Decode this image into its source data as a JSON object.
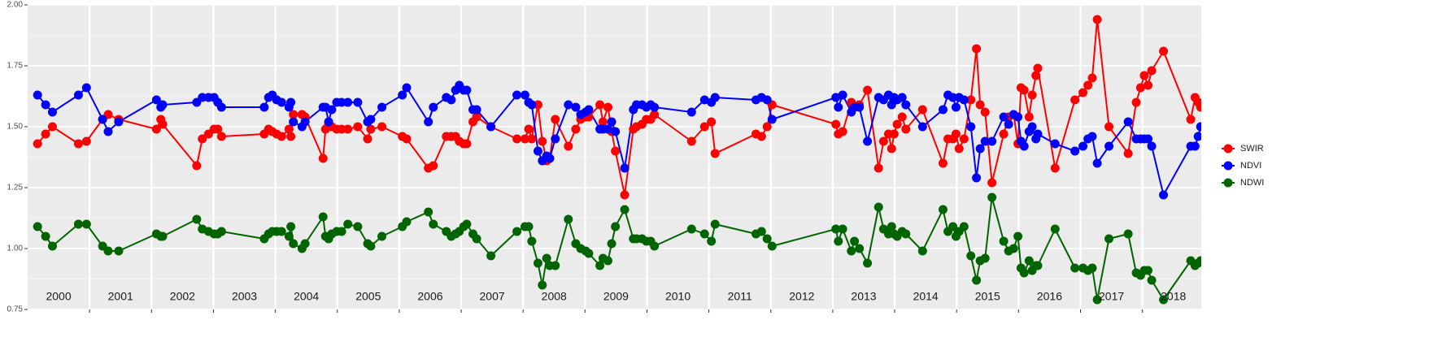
{
  "chart_data": {
    "type": "line",
    "x": [
      2000.16,
      2000.29,
      2000.4,
      2000.82,
      2000.95,
      2001.21,
      2001.3,
      2001.47,
      2002.08,
      2002.15,
      2002.18,
      2002.73,
      2002.82,
      2002.92,
      2003.01,
      2003.07,
      2003.13,
      2003.82,
      2003.89,
      2003.95,
      2004.02,
      2004.1,
      2004.22,
      2004.25,
      2004.29,
      2004.43,
      2004.48,
      2004.77,
      2004.81,
      2004.86,
      2004.91,
      2004.99,
      2005.07,
      2005.17,
      2005.33,
      2005.49,
      2005.54,
      2005.72,
      2006.05,
      2006.12,
      2006.47,
      2006.55,
      2006.76,
      2006.84,
      2006.91,
      2006.97,
      2007.04,
      2007.09,
      2007.19,
      2007.25,
      2007.48,
      2007.9,
      2008.03,
      2008.09,
      2008.14,
      2008.24,
      2008.31,
      2008.38,
      2008.43,
      2008.52,
      2008.73,
      2008.85,
      2008.93,
      2009.01,
      2009.06,
      2009.24,
      2009.29,
      2009.37,
      2009.43,
      2009.49,
      2009.64,
      2009.78,
      2009.83,
      2009.92,
      2009.99,
      2010.06,
      2010.12,
      2010.72,
      2010.93,
      2011.04,
      2011.1,
      2011.76,
      2011.85,
      2011.94,
      2012.02,
      2013.05,
      2013.09,
      2013.16,
      2013.3,
      2013.35,
      2013.43,
      2013.56,
      2013.74,
      2013.82,
      2013.9,
      2013.95,
      2013.99,
      2014.04,
      2014.12,
      2014.18,
      2014.45,
      2014.78,
      2014.86,
      2014.94,
      2014.99,
      2015.04,
      2015.12,
      2015.23,
      2015.32,
      2015.38,
      2015.46,
      2015.57,
      2015.76,
      2015.84,
      2015.92,
      2015.99,
      2016.04,
      2016.09,
      2016.17,
      2016.22,
      2016.28,
      2016.31,
      2016.59,
      2016.91,
      2017.04,
      2017.12,
      2017.19,
      2017.27,
      2017.46,
      2017.77,
      2017.9,
      2017.97,
      2018.03,
      2018.09,
      2018.15,
      2018.34,
      2018.78,
      2018.85,
      2018.9,
      2018.94
    ],
    "series": [
      {
        "name": "SWIR",
        "color": "#ff0000",
        "values": [
          1.43,
          1.47,
          1.5,
          1.43,
          1.44,
          1.53,
          1.55,
          1.53,
          1.49,
          1.53,
          1.51,
          1.34,
          1.45,
          1.47,
          1.49,
          1.49,
          1.46,
          1.47,
          1.49,
          1.48,
          1.47,
          1.46,
          1.49,
          1.46,
          1.55,
          1.55,
          1.54,
          1.37,
          1.49,
          1.51,
          1.5,
          1.49,
          1.49,
          1.49,
          1.5,
          1.45,
          1.49,
          1.5,
          1.46,
          1.45,
          1.33,
          1.34,
          1.46,
          1.46,
          1.46,
          1.44,
          1.43,
          1.43,
          1.52,
          1.54,
          1.5,
          1.45,
          1.45,
          1.49,
          1.45,
          1.59,
          1.44,
          1.36,
          1.37,
          1.53,
          1.42,
          1.49,
          1.53,
          1.54,
          1.54,
          1.59,
          1.52,
          1.58,
          1.48,
          1.4,
          1.22,
          1.49,
          1.5,
          1.51,
          1.53,
          1.53,
          1.55,
          1.44,
          1.5,
          1.52,
          1.39,
          1.47,
          1.46,
          1.5,
          1.59,
          1.51,
          1.47,
          1.48,
          1.6,
          1.58,
          1.59,
          1.65,
          1.33,
          1.44,
          1.47,
          1.41,
          1.47,
          1.51,
          1.54,
          1.49,
          1.57,
          1.35,
          1.45,
          1.45,
          1.47,
          1.41,
          1.45,
          1.61,
          1.82,
          1.59,
          1.56,
          1.27,
          1.47,
          1.54,
          1.55,
          1.43,
          1.66,
          1.65,
          1.54,
          1.63,
          1.71,
          1.74,
          1.33,
          1.61,
          1.64,
          1.67,
          1.7,
          1.94,
          1.5,
          1.39,
          1.6,
          1.66,
          1.71,
          1.67,
          1.73,
          1.81,
          1.53,
          1.62,
          1.6,
          1.58
        ]
      },
      {
        "name": "NDVI",
        "color": "#0000ff",
        "values": [
          1.63,
          1.59,
          1.56,
          1.63,
          1.66,
          1.53,
          1.48,
          1.52,
          1.61,
          1.58,
          1.59,
          1.6,
          1.62,
          1.62,
          1.62,
          1.6,
          1.58,
          1.58,
          1.62,
          1.63,
          1.61,
          1.6,
          1.58,
          1.6,
          1.52,
          1.5,
          1.52,
          1.58,
          1.58,
          1.52,
          1.57,
          1.6,
          1.6,
          1.6,
          1.6,
          1.52,
          1.53,
          1.58,
          1.63,
          1.66,
          1.52,
          1.58,
          1.62,
          1.61,
          1.65,
          1.67,
          1.65,
          1.65,
          1.57,
          1.57,
          1.5,
          1.63,
          1.63,
          1.6,
          1.59,
          1.4,
          1.36,
          1.38,
          1.37,
          1.45,
          1.59,
          1.58,
          1.55,
          1.56,
          1.57,
          1.49,
          1.49,
          1.49,
          1.52,
          1.48,
          1.33,
          1.57,
          1.59,
          1.59,
          1.58,
          1.59,
          1.58,
          1.56,
          1.61,
          1.6,
          1.62,
          1.61,
          1.62,
          1.61,
          1.53,
          1.62,
          1.58,
          1.63,
          1.56,
          1.58,
          1.58,
          1.44,
          1.62,
          1.61,
          1.63,
          1.59,
          1.62,
          1.61,
          1.62,
          1.59,
          1.5,
          1.57,
          1.63,
          1.62,
          1.58,
          1.62,
          1.61,
          1.5,
          1.29,
          1.41,
          1.44,
          1.44,
          1.54,
          1.51,
          1.55,
          1.54,
          1.44,
          1.42,
          1.48,
          1.5,
          1.45,
          1.47,
          1.43,
          1.4,
          1.42,
          1.45,
          1.46,
          1.35,
          1.42,
          1.52,
          1.45,
          1.45,
          1.45,
          1.45,
          1.42,
          1.22,
          1.42,
          1.42,
          1.46,
          1.5
        ]
      },
      {
        "name": "NDWI",
        "color": "#006400",
        "values": [
          1.09,
          1.05,
          1.01,
          1.1,
          1.1,
          1.01,
          0.99,
          0.99,
          1.06,
          1.05,
          1.05,
          1.12,
          1.08,
          1.07,
          1.06,
          1.06,
          1.07,
          1.04,
          1.06,
          1.07,
          1.07,
          1.07,
          1.05,
          1.09,
          1.02,
          1.0,
          1.02,
          1.13,
          1.05,
          1.04,
          1.06,
          1.07,
          1.07,
          1.1,
          1.09,
          1.02,
          1.01,
          1.05,
          1.09,
          1.11,
          1.15,
          1.1,
          1.07,
          1.05,
          1.06,
          1.07,
          1.09,
          1.1,
          1.06,
          1.04,
          0.97,
          1.07,
          1.09,
          1.09,
          1.03,
          0.94,
          0.85,
          0.96,
          0.93,
          0.93,
          1.12,
          1.02,
          1.0,
          0.99,
          0.98,
          0.93,
          0.96,
          0.95,
          1.02,
          1.09,
          1.16,
          1.04,
          1.04,
          1.04,
          1.03,
          1.03,
          1.01,
          1.08,
          1.06,
          1.03,
          1.1,
          1.06,
          1.07,
          1.04,
          1.01,
          1.08,
          1.03,
          1.08,
          0.99,
          1.03,
          1.0,
          0.94,
          1.17,
          1.08,
          1.06,
          1.09,
          1.06,
          1.05,
          1.07,
          1.06,
          0.99,
          1.16,
          1.07,
          1.09,
          1.05,
          1.07,
          1.09,
          0.97,
          0.87,
          0.95,
          0.96,
          1.21,
          1.03,
          0.99,
          1.0,
          1.05,
          0.92,
          0.9,
          0.95,
          0.91,
          0.93,
          0.93,
          1.08,
          0.92,
          0.92,
          0.91,
          0.92,
          0.79,
          1.04,
          1.06,
          0.9,
          0.89,
          0.91,
          0.91,
          0.87,
          0.79,
          0.95,
          0.93,
          0.94,
          0.95
        ]
      }
    ],
    "xlim": [
      2000.0,
      2018.95
    ],
    "xticks": [
      {
        "value": 2000.5,
        "label": "2000"
      },
      {
        "value": 2001.5,
        "label": "2001"
      },
      {
        "value": 2002.5,
        "label": "2002"
      },
      {
        "value": 2003.5,
        "label": "2003"
      },
      {
        "value": 2004.5,
        "label": "2004"
      },
      {
        "value": 2005.5,
        "label": "2005"
      },
      {
        "value": 2006.5,
        "label": "2006"
      },
      {
        "value": 2007.5,
        "label": "2007"
      },
      {
        "value": 2008.5,
        "label": "2008"
      },
      {
        "value": 2009.5,
        "label": "2009"
      },
      {
        "value": 2010.5,
        "label": "2010"
      },
      {
        "value": 2011.5,
        "label": "2011"
      },
      {
        "value": 2012.5,
        "label": "2012"
      },
      {
        "value": 2013.5,
        "label": "2013"
      },
      {
        "value": 2014.5,
        "label": "2014"
      },
      {
        "value": 2015.5,
        "label": "2015"
      },
      {
        "value": 2016.5,
        "label": "2016"
      },
      {
        "value": 2017.5,
        "label": "2017"
      },
      {
        "value": 2018.5,
        "label": "2018"
      }
    ],
    "xgrid": [
      2001,
      2002,
      2003,
      2004,
      2005,
      2006,
      2007,
      2008,
      2009,
      2010,
      2011,
      2012,
      2013,
      2014,
      2015,
      2016,
      2017,
      2018
    ],
    "ylim": [
      0.75,
      2.0
    ],
    "yticks": [
      {
        "value": 0.75,
        "label": "0.75"
      },
      {
        "value": 1.0,
        "label": "1.00"
      },
      {
        "value": 1.25,
        "label": "1.25"
      },
      {
        "value": 1.5,
        "label": "1.50"
      },
      {
        "value": 1.75,
        "label": "1.75"
      },
      {
        "value": 2.0,
        "label": "2.00"
      }
    ],
    "yminor": [
      0.875,
      1.125,
      1.375,
      1.625,
      1.875
    ],
    "grid": true,
    "legend": "right"
  }
}
